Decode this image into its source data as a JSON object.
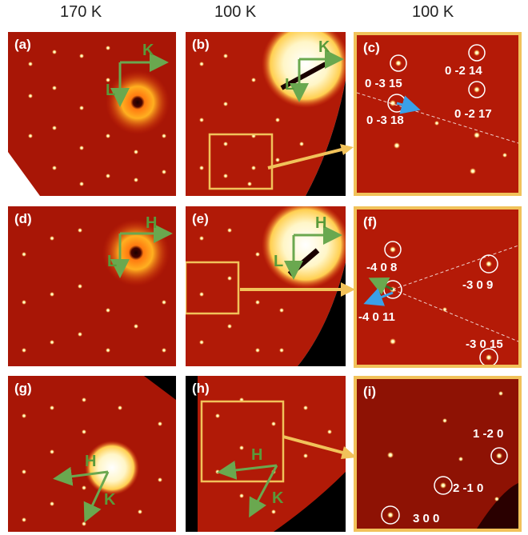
{
  "headers": [
    "170 K",
    "100 K",
    "100 K"
  ],
  "panels": {
    "a": {
      "label": "(a)",
      "axes": [
        "K",
        "L"
      ]
    },
    "b": {
      "label": "(b)",
      "axes": [
        "K",
        "L"
      ]
    },
    "c": {
      "label": "(c)",
      "indices": [
        "0 -2 14",
        "0 -3 15",
        "0 -3 18",
        "0 -2 17"
      ]
    },
    "d": {
      "label": "(d)",
      "axes": [
        "H",
        "L"
      ]
    },
    "e": {
      "label": "(e)",
      "axes": [
        "H",
        "L"
      ]
    },
    "f": {
      "label": "(f)",
      "indices": [
        "-4 0 8",
        "-3 0 9",
        "-4 0 11",
        "-3 0 15"
      ]
    },
    "g": {
      "label": "(g)",
      "axes": [
        "H",
        "K"
      ]
    },
    "h": {
      "label": "(h)",
      "axes": [
        "H",
        "K"
      ]
    },
    "i": {
      "label": "(i)",
      "indices": [
        "1 -2 0",
        "2 -1 0",
        "3 0 0"
      ]
    }
  },
  "colors": {
    "frame": "#f1c25a",
    "axis": "#6aa84f",
    "arrow": "#3aa0e8",
    "background": "#b81a08"
  }
}
